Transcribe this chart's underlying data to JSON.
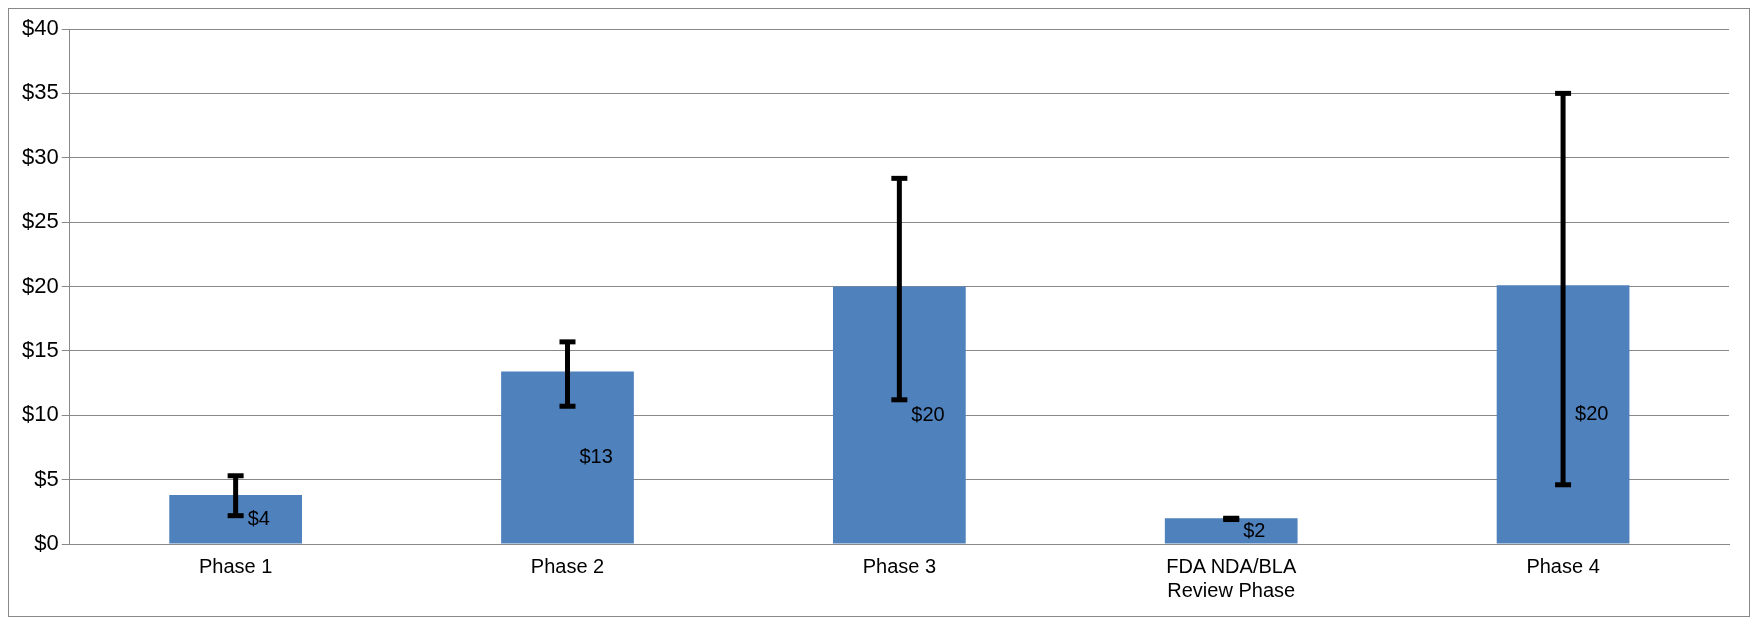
{
  "chart_data": {
    "type": "bar",
    "categories": [
      "Phase 1",
      "Phase 2",
      "Phase 3",
      "FDA NDA/BLA Review Phase",
      "Phase 4"
    ],
    "values": [
      3.8,
      13.4,
      20,
      2,
      20.1
    ],
    "errors": [
      [
        2.2,
        5.3
      ],
      [
        10.7,
        15.7
      ],
      [
        11.2,
        28.4
      ],
      [
        1.9,
        2.0
      ],
      [
        4.6,
        35
      ]
    ],
    "value_labels": [
      "$4",
      "$13",
      "$20",
      "$2",
      "$20"
    ],
    "color": "#4f81bd",
    "ylim": [
      0,
      40
    ],
    "yticks": [
      {
        "value": 0,
        "label": "$0"
      },
      {
        "value": 5,
        "label": "$5"
      },
      {
        "value": 10,
        "label": "$10"
      },
      {
        "value": 15,
        "label": "$15"
      },
      {
        "value": 20,
        "label": "$20"
      },
      {
        "value": 25,
        "label": "$25"
      },
      {
        "value": 30,
        "label": "$30"
      },
      {
        "value": 35,
        "label": "$35"
      },
      {
        "value": 40,
        "label": "$40"
      }
    ],
    "grid": "y",
    "legend": false
  }
}
